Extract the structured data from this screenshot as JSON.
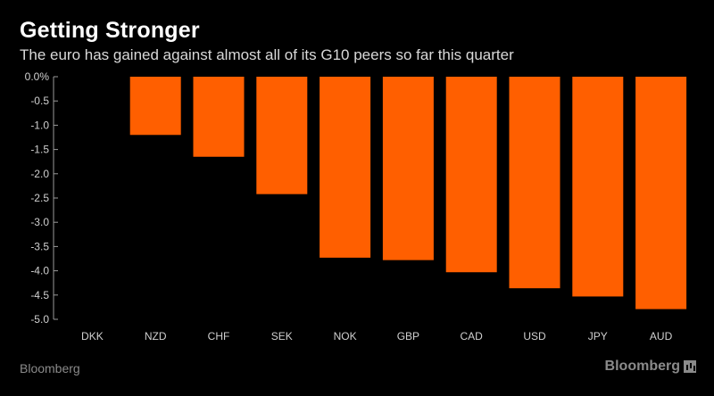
{
  "title": "Getting Stronger",
  "subtitle": "The euro has gained against almost all of its G10 peers so far this quarter",
  "footer": {
    "source": "Bloomberg",
    "brand": "Bloomberg"
  },
  "colors": {
    "bar": "#ff5f00",
    "axis_line": "#9a9a9a",
    "tick_text": "#d0d0d0"
  },
  "chart_data": {
    "type": "bar",
    "categories": [
      "DKK",
      "NZD",
      "CHF",
      "SEK",
      "NOK",
      "GBP",
      "CAD",
      "USD",
      "JPY",
      "AUD"
    ],
    "values": [
      0.0,
      -1.2,
      -1.65,
      -2.42,
      -3.73,
      -3.78,
      -4.03,
      -4.36,
      -4.53,
      -4.79
    ],
    "ylim": [
      -5.0,
      0.0
    ],
    "yticks": [
      0.0,
      -0.5,
      -1.0,
      -1.5,
      -2.0,
      -2.5,
      -3.0,
      -3.5,
      -4.0,
      -4.5,
      -5.0
    ],
    "ytick_labels": [
      "0.0%",
      "-0.5",
      "-1.0",
      "-1.5",
      "-2.0",
      "-2.5",
      "-3.0",
      "-3.5",
      "-4.0",
      "-4.5",
      "-5.0"
    ],
    "grid": false,
    "legend": "none"
  }
}
